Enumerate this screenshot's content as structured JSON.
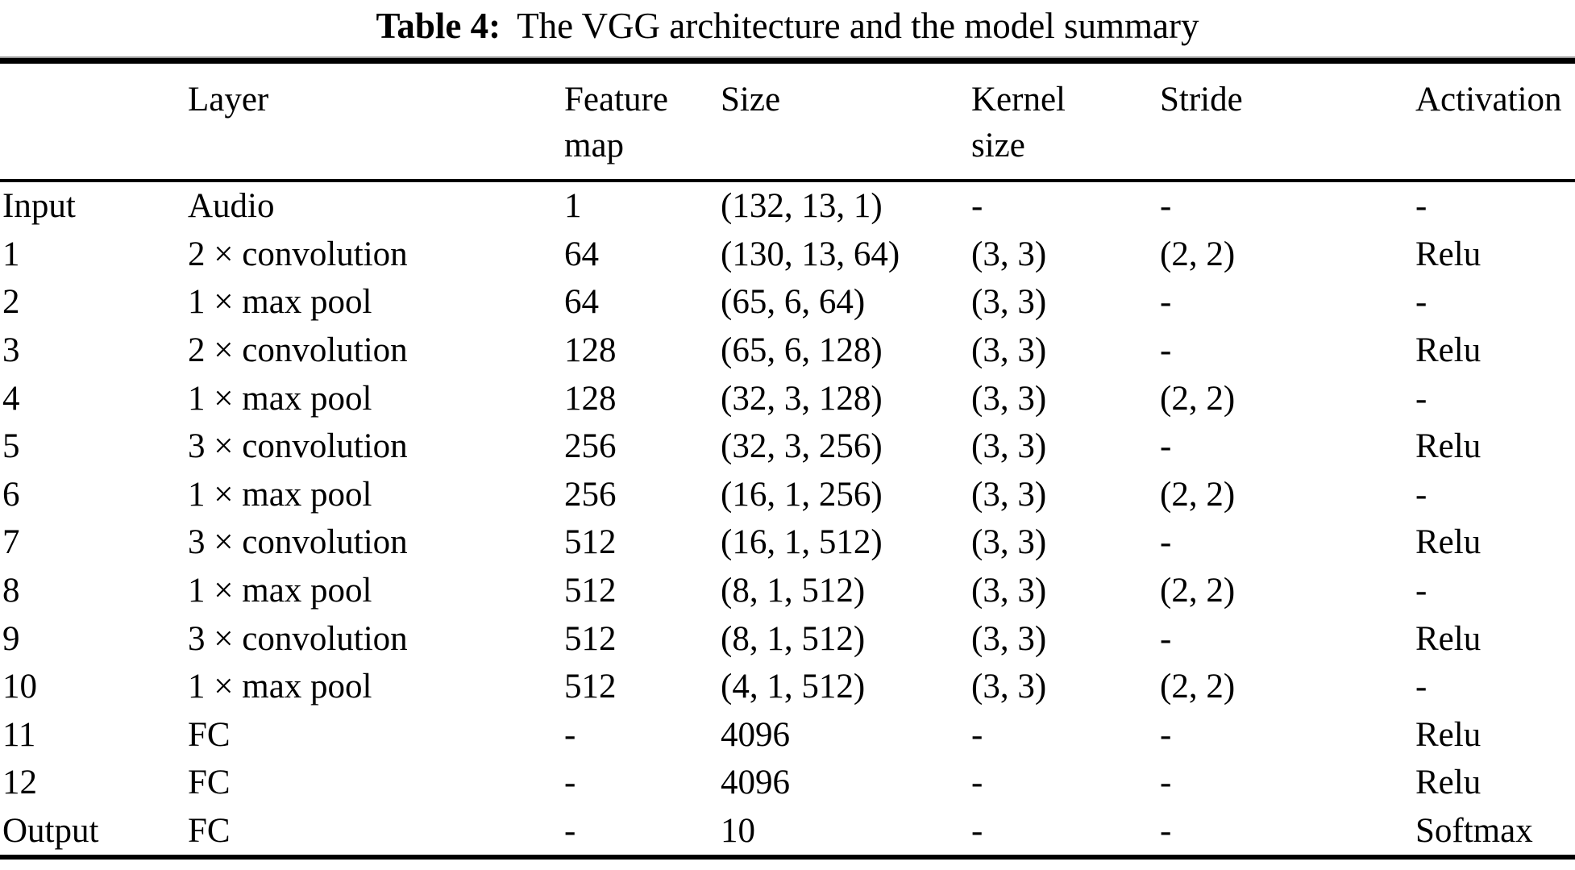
{
  "caption": {
    "label": "Table 4:",
    "text": "The VGG architecture and the model summary"
  },
  "table": {
    "header": [
      {
        "line1": "",
        "line2": ""
      },
      {
        "line1": "Layer",
        "line2": ""
      },
      {
        "line1": "Feature",
        "line2": "map"
      },
      {
        "line1": "Size",
        "line2": ""
      },
      {
        "line1": "Kernel",
        "line2": "size"
      },
      {
        "line1": "Stride",
        "line2": ""
      },
      {
        "line1": "Activation",
        "line2": ""
      }
    ],
    "rows": [
      [
        "Input",
        "Audio",
        "1",
        "(132, 13, 1)",
        "-",
        "-",
        "-"
      ],
      [
        "1",
        "2 × convolution",
        "64",
        "(130, 13, 64)",
        "(3, 3)",
        "(2, 2)",
        "Relu"
      ],
      [
        "2",
        "1 × max pool",
        "64",
        "(65, 6, 64)",
        "(3, 3)",
        "-",
        "-"
      ],
      [
        "3",
        "2 × convolution",
        "128",
        "(65, 6, 128)",
        "(3, 3)",
        "-",
        "Relu"
      ],
      [
        "4",
        "1 × max pool",
        "128",
        "(32, 3, 128)",
        "(3, 3)",
        "(2, 2)",
        "-"
      ],
      [
        "5",
        "3 × convolution",
        "256",
        "(32, 3, 256)",
        "(3, 3)",
        "-",
        "Relu"
      ],
      [
        "6",
        "1 × max pool",
        "256",
        "(16, 1, 256)",
        "(3, 3)",
        "(2, 2)",
        "-"
      ],
      [
        "7",
        "3 × convolution",
        "512",
        "(16, 1, 512)",
        "(3, 3)",
        "-",
        "Relu"
      ],
      [
        "8",
        "1 × max pool",
        "512",
        "(8, 1, 512)",
        "(3, 3)",
        "(2, 2)",
        "-"
      ],
      [
        "9",
        "3 × convolution",
        "512",
        "(8, 1, 512)",
        "(3, 3)",
        "-",
        "Relu"
      ],
      [
        "10",
        "1 × max pool",
        "512",
        "(4, 1, 512)",
        "(3, 3)",
        "(2, 2)",
        "-"
      ],
      [
        "11",
        "FC",
        "-",
        "4096",
        "-",
        "-",
        "Relu"
      ],
      [
        "12",
        "FC",
        "-",
        "4096",
        "-",
        "-",
        "Relu"
      ],
      [
        "Output",
        "FC",
        "-",
        "10",
        "-",
        "-",
        "Softmax"
      ]
    ]
  }
}
